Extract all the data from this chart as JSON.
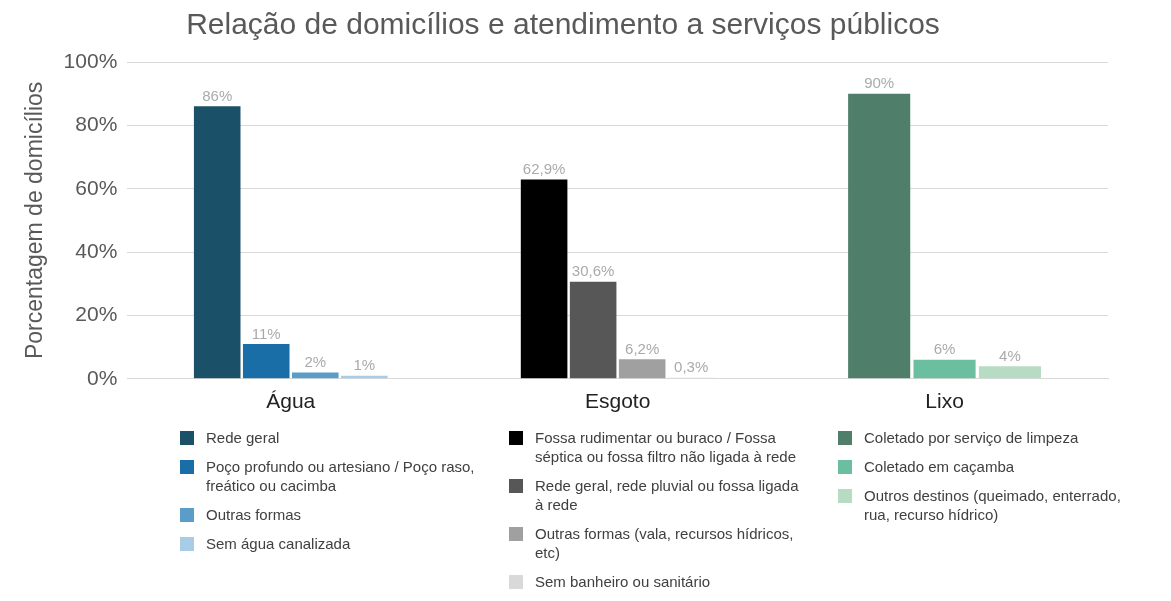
{
  "chart_data": {
    "type": "bar",
    "title": "Relação de domicílios e atendimento a serviços públicos",
    "ylabel": "Porcentagem de domicílios",
    "categories": [
      "Água",
      "Esgoto",
      "Lixo"
    ],
    "series": [
      {
        "name": "Rede geral",
        "color": "#1a5068",
        "values": [
          86,
          null,
          null
        ],
        "value_labels": [
          "86%",
          null,
          null
        ]
      },
      {
        "name": "Poço profundo ou artesiano / Poço raso, freático ou cacimba",
        "color": "#1a6ea8",
        "values": [
          11,
          null,
          null
        ],
        "value_labels": [
          "11%",
          null,
          null
        ]
      },
      {
        "name": "Outras formas",
        "color": "#5b9dc9",
        "values": [
          2,
          null,
          null
        ],
        "value_labels": [
          "2%",
          null,
          null
        ]
      },
      {
        "name": "Sem água canalizada",
        "color": "#a9cce6",
        "values": [
          1,
          null,
          null
        ],
        "value_labels": [
          "1%",
          null,
          null
        ]
      },
      {
        "name": "Fossa rudimentar ou buraco / Fossa séptica ou fossa filtro não ligada à rede",
        "color": "#000000",
        "values": [
          null,
          62.9,
          null
        ],
        "value_labels": [
          null,
          "62,9%",
          null
        ]
      },
      {
        "name": "Rede geral, rede pluvial ou fossa ligada à rede",
        "color": "#575757",
        "values": [
          null,
          30.6,
          null
        ],
        "value_labels": [
          null,
          "30,6%",
          null
        ]
      },
      {
        "name": "Outras formas (vala, recursos hídricos, etc)",
        "color": "#a0a0a0",
        "values": [
          null,
          6.2,
          null
        ],
        "value_labels": [
          null,
          "6,2%",
          null
        ]
      },
      {
        "name": "Sem banheiro ou sanitário",
        "color": "#d9d9d9",
        "values": [
          null,
          0.3,
          null
        ],
        "value_labels": [
          null,
          "0,3%",
          null
        ]
      },
      {
        "name": "Coletado por serviço de limpeza",
        "color": "#4f7f6a",
        "values": [
          null,
          null,
          90
        ],
        "value_labels": [
          null,
          null,
          "90%"
        ]
      },
      {
        "name": "Coletado em caçamba",
        "color": "#6bbfa0",
        "values": [
          null,
          null,
          6
        ],
        "value_labels": [
          null,
          null,
          "6%"
        ]
      },
      {
        "name": "Outros destinos (queimado, enterrado, rua, recurso hídrico)",
        "color": "#b7dcc3",
        "values": [
          null,
          null,
          4
        ],
        "value_labels": [
          null,
          null,
          "4%"
        ]
      }
    ],
    "ylim": [
      0,
      100
    ],
    "yticks": [
      {
        "value": 0,
        "label": "0%"
      },
      {
        "value": 20,
        "label": "20%"
      },
      {
        "value": 40,
        "label": "40%"
      },
      {
        "value": 60,
        "label": "60%"
      },
      {
        "value": 80,
        "label": "80%"
      },
      {
        "value": 100,
        "label": "100%"
      }
    ],
    "grid": "y",
    "legend": "bottom"
  }
}
